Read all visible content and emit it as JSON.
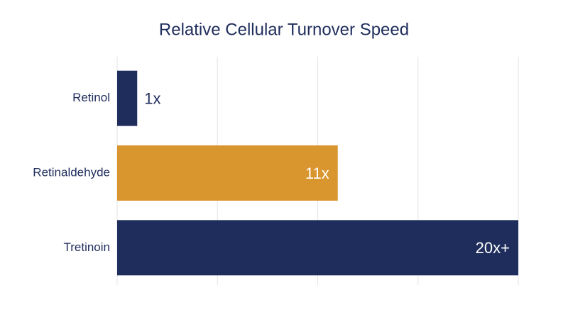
{
  "chart_data": {
    "type": "hbar",
    "title": "Relative Cellular Turnover Speed",
    "categories": [
      "Retinol",
      "Retinaldehyde",
      "Tretinoin"
    ],
    "values": [
      1,
      11,
      20
    ],
    "value_labels": [
      "1x",
      "11x",
      "20x+"
    ],
    "colors": [
      "#1f2d5c",
      "#d9952e",
      "#1f2d5c"
    ],
    "xlim": [
      0,
      20
    ],
    "xticks": [
      0,
      5,
      10,
      15,
      20
    ],
    "grid": true
  }
}
